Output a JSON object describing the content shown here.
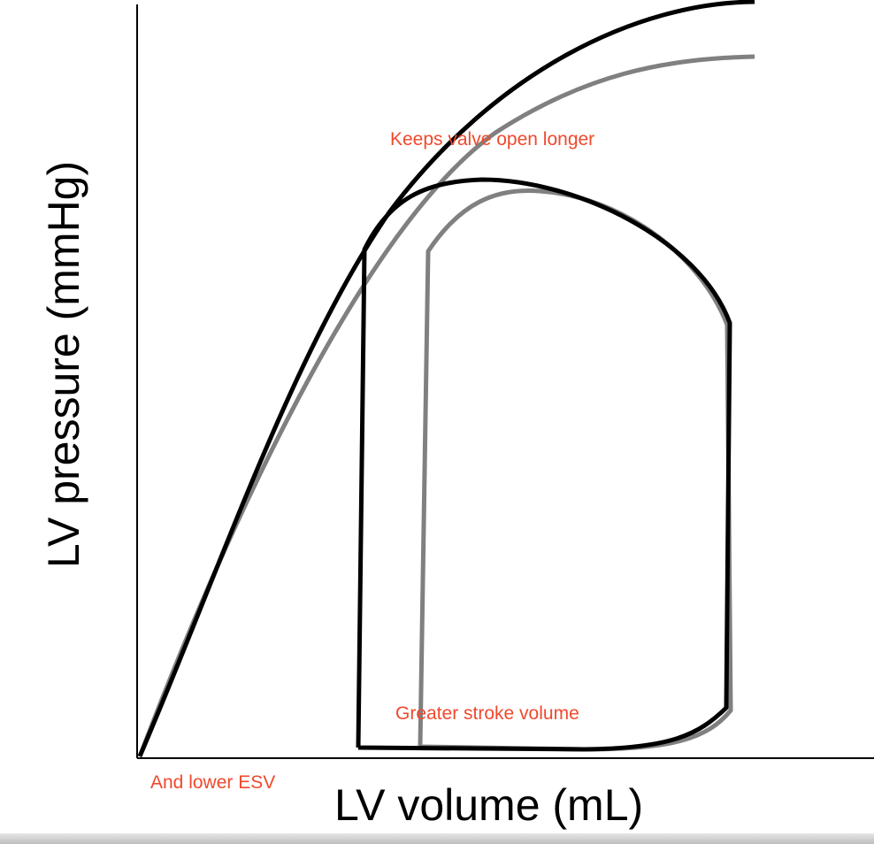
{
  "axes": {
    "x_label": "LV volume (mL)",
    "y_label": "LV pressure (mmHg)"
  },
  "annotations": {
    "valve": "Keeps valve open longer",
    "stroke_volume": "Greater stroke volume",
    "esv": "And lower ESV"
  },
  "colors": {
    "baseline_loop": "#000000",
    "modified_loop": "#808080",
    "annotation": "#f0492d",
    "axis": "#000000"
  }
}
